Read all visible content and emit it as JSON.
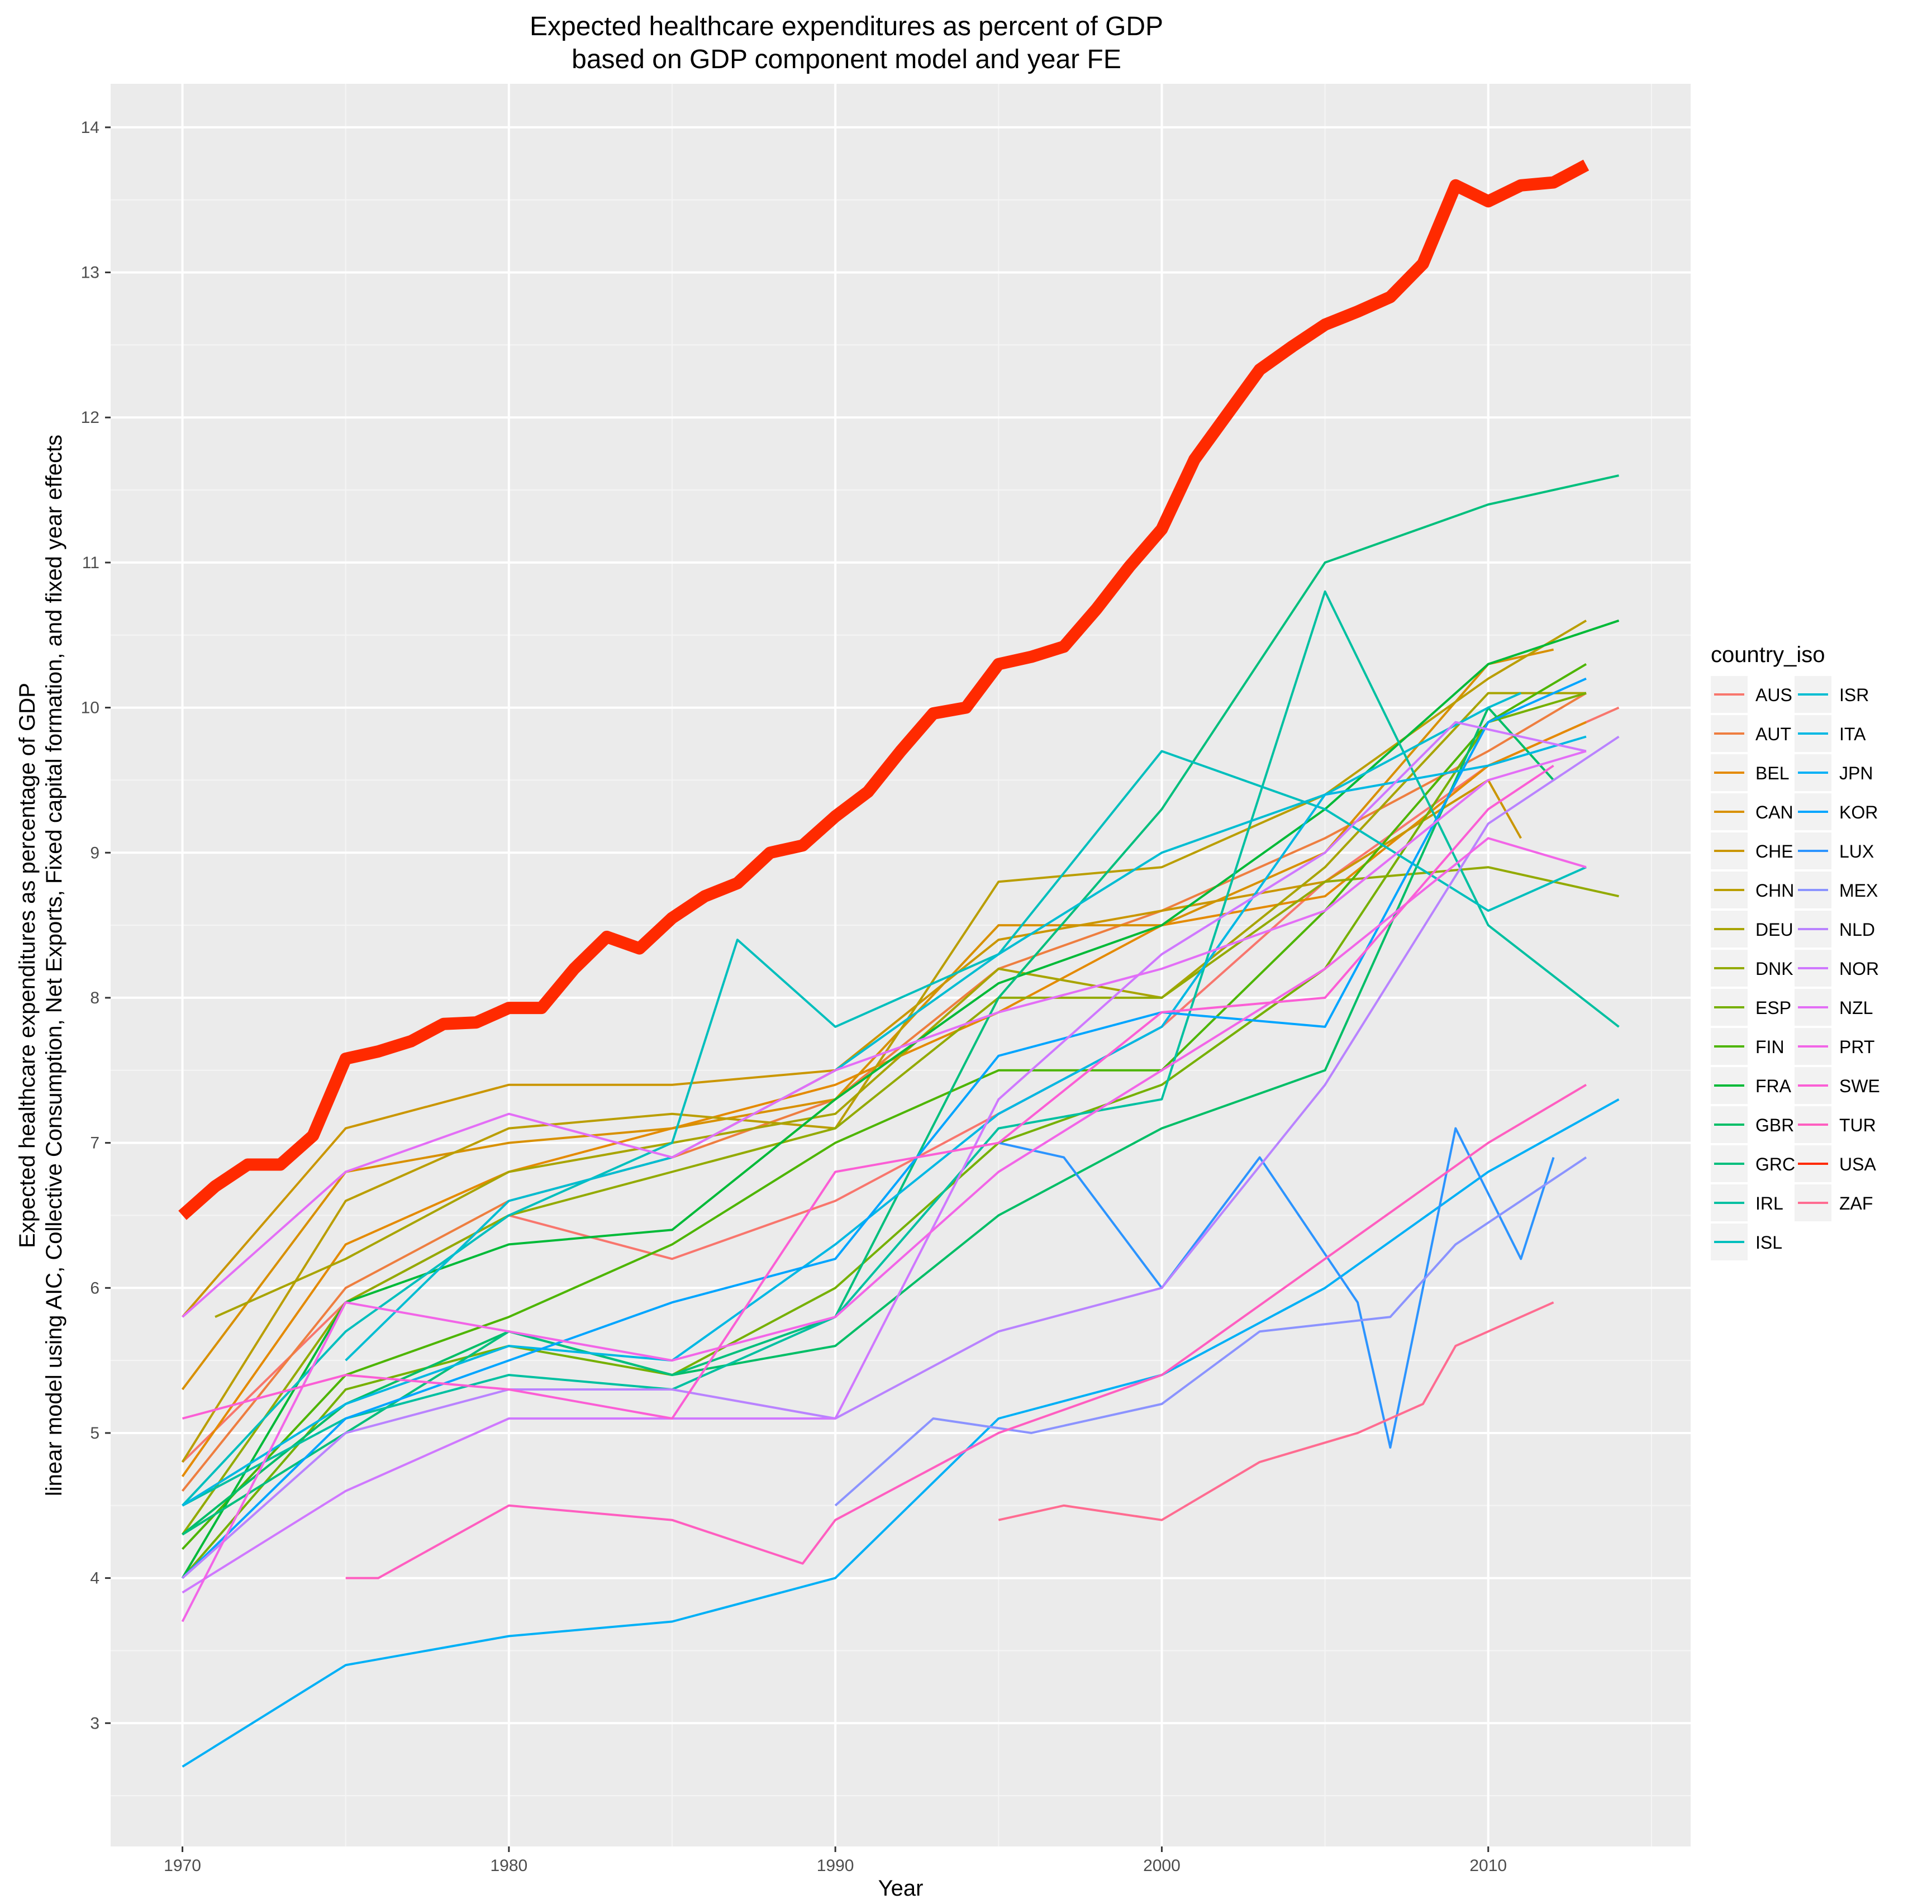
{
  "chart_data": {
    "type": "line",
    "title": [
      "Expected healthcare expenditures as percent of GDP",
      "based on GDP component model and year FE"
    ],
    "xlabel": "Year",
    "ylabel": [
      "Expected healthcare expenditures as percentage of GDP",
      "linear model using AIC, Collective Consumption, Net Exports, Fixed capital formation, and fixed year effects"
    ],
    "xlim": [
      1967.8,
      2016.2
    ],
    "ylim": [
      2.15,
      14.3
    ],
    "xticks": [
      1970,
      1980,
      1990,
      2000,
      2010
    ],
    "xtick_labels": [
      "1970",
      "1980",
      "1990",
      "2000",
      "2010"
    ],
    "yticks": [
      3,
      4,
      5,
      6,
      7,
      8,
      9,
      10,
      11,
      12,
      13,
      14
    ],
    "ytick_labels": [
      "3",
      "4",
      "5",
      "6",
      "7",
      "8",
      "9",
      "10",
      "11",
      "12",
      "13",
      "14"
    ],
    "grid": true,
    "legend_title": "country_iso",
    "legend_position": "right",
    "highlight_series": "USA",
    "highlight_color": "#ff2a00",
    "series": [
      {
        "name": "AUS",
        "color": "#F8766D",
        "x": [
          1970,
          1975,
          1980,
          1985,
          1990,
          1995,
          2000,
          2005,
          2010,
          2014
        ],
        "y": [
          4.8,
          5.9,
          6.5,
          6.2,
          6.6,
          7.2,
          7.8,
          8.8,
          9.6,
          10.0
        ]
      },
      {
        "name": "AUT",
        "color": "#EE7E40",
        "x": [
          1970,
          1975,
          1980,
          1985,
          1990,
          1995,
          2000,
          2005,
          2010,
          2013
        ],
        "y": [
          4.6,
          6.0,
          6.6,
          6.9,
          7.3,
          8.2,
          8.6,
          9.1,
          9.7,
          10.1
        ]
      },
      {
        "name": "BEL",
        "color": "#E48A00",
        "x": [
          1970,
          1975,
          1980,
          1985,
          1990,
          1995,
          2000,
          2005,
          2010,
          2013
        ],
        "y": [
          4.7,
          6.3,
          6.8,
          7.1,
          7.4,
          7.9,
          8.5,
          8.7,
          9.6,
          9.9
        ]
      },
      {
        "name": "CAN",
        "color": "#D89000",
        "x": [
          1970,
          1975,
          1980,
          1985,
          1990,
          1995,
          2000,
          2005,
          2010,
          2012
        ],
        "y": [
          5.3,
          6.8,
          7.0,
          7.1,
          7.3,
          8.5,
          8.5,
          9.0,
          10.3,
          10.4
        ]
      },
      {
        "name": "CHE",
        "color": "#CA9600",
        "x": [
          1970,
          1975,
          1980,
          1985,
          1990,
          1995,
          2000,
          2005,
          2010,
          2011
        ],
        "y": [
          5.8,
          7.1,
          7.4,
          7.4,
          7.5,
          8.4,
          8.6,
          8.8,
          9.5,
          9.1
        ]
      },
      {
        "name": "CHN",
        "color": "#BA9E00",
        "x": [
          1970,
          1975,
          1980,
          1985,
          1990,
          1995,
          2000,
          2005,
          2010,
          2013
        ],
        "y": [
          4.8,
          6.6,
          7.1,
          7.2,
          7.1,
          8.8,
          8.9,
          9.4,
          10.2,
          10.6
        ]
      },
      {
        "name": "DEU",
        "color": "#A8A400",
        "x": [
          1971,
          1975,
          1980,
          1985,
          1990,
          1995,
          2000,
          2005,
          2010,
          2013
        ],
        "y": [
          5.8,
          6.2,
          6.8,
          7.0,
          7.2,
          8.2,
          8.0,
          8.9,
          10.1,
          10.1
        ]
      },
      {
        "name": "DNK",
        "color": "#93AA00",
        "x": [
          1970,
          1975,
          1980,
          1985,
          1990,
          1995,
          2000,
          2005,
          2010,
          2014
        ],
        "y": [
          4.3,
          5.9,
          6.5,
          6.8,
          7.1,
          8.0,
          8.0,
          8.8,
          8.9,
          8.7
        ]
      },
      {
        "name": "ESP",
        "color": "#76B000",
        "x": [
          1970,
          1975,
          1980,
          1985,
          1990,
          1995,
          2000,
          2005,
          2010,
          2013
        ],
        "y": [
          4.0,
          5.3,
          5.6,
          5.4,
          6.0,
          7.0,
          7.4,
          8.2,
          9.9,
          10.1
        ]
      },
      {
        "name": "FIN",
        "color": "#4DB500",
        "x": [
          1970,
          1975,
          1980,
          1985,
          1990,
          1995,
          2000,
          2005,
          2010,
          2013
        ],
        "y": [
          4.2,
          5.4,
          5.8,
          6.3,
          7.0,
          7.5,
          7.5,
          8.6,
          9.9,
          10.3
        ]
      },
      {
        "name": "FRA",
        "color": "#00BA38",
        "x": [
          1970,
          1975,
          1980,
          1985,
          1990,
          1995,
          2000,
          2005,
          2010,
          2014
        ],
        "y": [
          4.0,
          5.9,
          6.3,
          6.4,
          7.3,
          8.1,
          8.5,
          9.3,
          10.3,
          10.6
        ]
      },
      {
        "name": "GBR",
        "color": "#00BE67",
        "x": [
          1970,
          1975,
          1980,
          1985,
          1990,
          1995,
          2000,
          2005,
          2010,
          2012
        ],
        "y": [
          4.3,
          5.2,
          5.7,
          5.4,
          5.6,
          6.5,
          7.1,
          7.5,
          10.0,
          9.5
        ]
      },
      {
        "name": "GRC",
        "color": "#00BF7D",
        "x": [
          1970,
          1975,
          1980,
          1985,
          1990,
          1995,
          2000,
          2005,
          2010,
          2014
        ],
        "y": [
          4.3,
          5.0,
          5.7,
          5.4,
          5.8,
          8.0,
          9.3,
          11.0,
          11.4,
          11.6
        ]
      },
      {
        "name": "IRL",
        "color": "#00C0A1",
        "x": [
          1970,
          1975,
          1980,
          1985,
          1990,
          1995,
          2000,
          2005,
          2010,
          2014
        ],
        "y": [
          4.5,
          5.1,
          5.4,
          5.3,
          5.8,
          7.1,
          7.3,
          10.8,
          8.5,
          7.8
        ]
      },
      {
        "name": "ISL",
        "color": "#00BFBD",
        "x": [
          1970,
          1975,
          1980,
          1985,
          1987,
          1990,
          1995,
          2000,
          2005,
          2010,
          2013
        ],
        "y": [
          4.5,
          5.7,
          6.5,
          7.0,
          8.4,
          7.8,
          8.3,
          9.7,
          9.3,
          8.6,
          8.9
        ]
      },
      {
        "name": "ISR",
        "color": "#00BDD2",
        "x": [
          1975,
          1980,
          1985,
          1990,
          1995,
          2000,
          2005,
          2010,
          2011
        ],
        "y": [
          5.5,
          6.6,
          6.9,
          7.5,
          8.3,
          9.0,
          9.4,
          10.0,
          10.1
        ]
      },
      {
        "name": "ITA",
        "color": "#00B8E3",
        "x": [
          1970,
          1975,
          1980,
          1985,
          1990,
          1995,
          2000,
          2005,
          2010,
          2013
        ],
        "y": [
          4.5,
          5.2,
          5.6,
          5.5,
          6.3,
          7.2,
          7.8,
          9.4,
          9.6,
          9.8
        ]
      },
      {
        "name": "JPN",
        "color": "#00B0F6",
        "x": [
          1970,
          1975,
          1980,
          1985,
          1990,
          1995,
          2000,
          2005,
          2010,
          2014
        ],
        "y": [
          2.7,
          3.4,
          3.6,
          3.7,
          4.0,
          5.1,
          5.4,
          6.0,
          6.8,
          7.3
        ]
      },
      {
        "name": "KOR",
        "color": "#00A5FF",
        "x": [
          1970,
          1975,
          1980,
          1985,
          1990,
          1995,
          2000,
          2005,
          2010,
          2013
        ],
        "y": [
          4.0,
          5.1,
          5.5,
          5.9,
          6.2,
          7.6,
          7.9,
          7.8,
          9.9,
          10.2
        ]
      },
      {
        "name": "LUX",
        "color": "#2C94FF",
        "x": [
          1995,
          1997,
          2000,
          2003,
          2006,
          2007,
          2009,
          2011,
          2012
        ],
        "y": [
          7.0,
          6.9,
          6.0,
          6.9,
          5.9,
          4.9,
          7.1,
          6.2,
          6.9
        ]
      },
      {
        "name": "MEX",
        "color": "#8B93FF",
        "x": [
          1990,
          1993,
          1996,
          2000,
          2003,
          2007,
          2009,
          2013
        ],
        "y": [
          4.5,
          5.1,
          5.0,
          5.2,
          5.7,
          5.8,
          6.3,
          6.9
        ]
      },
      {
        "name": "NLD",
        "color": "#B983FF",
        "x": [
          1970,
          1975,
          1980,
          1985,
          1990,
          1995,
          2000,
          2005,
          2010,
          2014
        ],
        "y": [
          4.0,
          5.0,
          5.3,
          5.3,
          5.1,
          5.7,
          6.0,
          7.4,
          9.2,
          9.8
        ]
      },
      {
        "name": "NOR",
        "color": "#CF78FF",
        "x": [
          1970,
          1975,
          1980,
          1985,
          1990,
          1995,
          2000,
          2005,
          2009,
          2013
        ],
        "y": [
          3.9,
          4.6,
          5.1,
          5.1,
          5.1,
          7.3,
          8.3,
          9.0,
          9.9,
          9.7
        ]
      },
      {
        "name": "NZL",
        "color": "#E36EF6",
        "x": [
          1970,
          1975,
          1980,
          1985,
          1990,
          1995,
          2000,
          2005,
          2010,
          2013
        ],
        "y": [
          5.8,
          6.8,
          7.2,
          6.9,
          7.5,
          7.9,
          8.2,
          8.6,
          9.5,
          9.7
        ]
      },
      {
        "name": "PRT",
        "color": "#F265E7",
        "x": [
          1970,
          1975,
          1980,
          1985,
          1990,
          1995,
          2000,
          2005,
          2010,
          2013
        ],
        "y": [
          3.7,
          5.9,
          5.7,
          5.5,
          5.8,
          6.8,
          7.5,
          8.2,
          9.1,
          8.9
        ]
      },
      {
        "name": "SWE",
        "color": "#FB5ED5",
        "x": [
          1970,
          1975,
          1980,
          1985,
          1990,
          1995,
          2000,
          2005,
          2010,
          2012
        ],
        "y": [
          5.1,
          5.4,
          5.3,
          5.1,
          6.8,
          7.0,
          7.9,
          8.0,
          9.3,
          9.6
        ]
      },
      {
        "name": "TUR",
        "color": "#FF5EC0",
        "x": [
          1975,
          1976,
          1980,
          1985,
          1989,
          1990,
          1995,
          2000,
          2005,
          2010,
          2013
        ],
        "y": [
          4.0,
          4.0,
          4.5,
          4.4,
          4.1,
          4.4,
          5.0,
          5.4,
          6.2,
          7.0,
          7.4
        ]
      },
      {
        "name": "USA",
        "color": "#FF2A00",
        "x": [
          1970,
          1971,
          1972,
          1973,
          1974,
          1975,
          1976,
          1977,
          1978,
          1979,
          1980,
          1981,
          1982,
          1983,
          1984,
          1985,
          1986,
          1987,
          1988,
          1989,
          1990,
          1991,
          1992,
          1993,
          1994,
          1995,
          1996,
          1997,
          1998,
          1999,
          2000,
          2001,
          2002,
          2003,
          2004,
          2005,
          2006,
          2007,
          2008,
          2009,
          2010,
          2011,
          2012,
          2013
        ],
        "y": [
          6.5,
          6.7,
          6.85,
          6.85,
          7.05,
          7.58,
          7.63,
          7.7,
          7.82,
          7.83,
          7.93,
          7.93,
          8.2,
          8.42,
          8.34,
          8.55,
          8.7,
          8.79,
          9.0,
          9.05,
          9.25,
          9.42,
          9.7,
          9.96,
          10.0,
          10.3,
          10.35,
          10.42,
          10.68,
          10.97,
          11.23,
          11.71,
          12.02,
          12.33,
          12.49,
          12.64,
          12.73,
          12.83,
          13.06,
          13.6,
          13.49,
          13.6,
          13.62,
          13.74
        ]
      },
      {
        "name": "ZAF",
        "color": "#FF6C91",
        "x": [
          1995,
          1997,
          2000,
          2003,
          2006,
          2008,
          2009,
          2011,
          2012
        ],
        "y": [
          4.4,
          4.5,
          4.4,
          4.8,
          5.0,
          5.2,
          5.6,
          5.8,
          5.9
        ]
      }
    ]
  }
}
